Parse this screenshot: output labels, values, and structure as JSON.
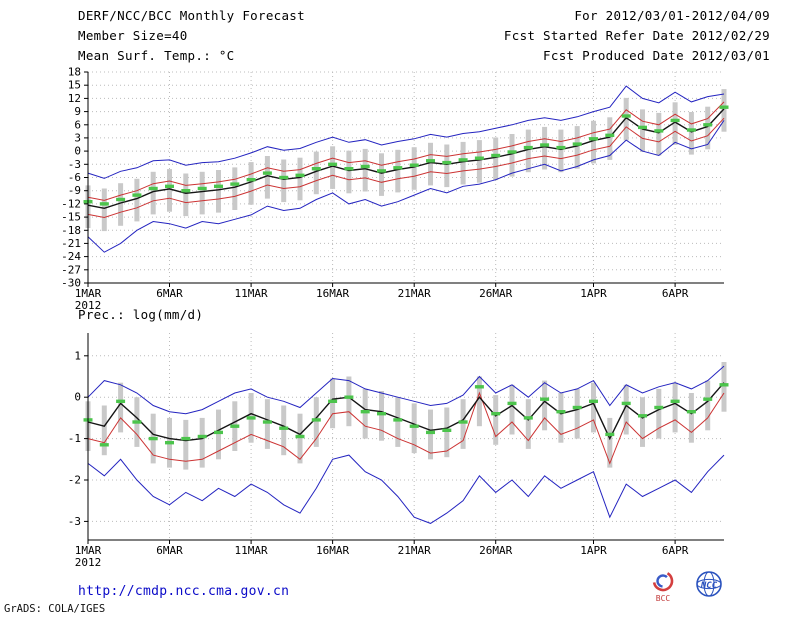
{
  "header": {
    "title": "DERF/NCC/BCC Monthly Forecast",
    "member_size": "Member Size=40",
    "variable_label": "Mean Surf. Temp.: °C",
    "for_range": "For 2012/03/01-2012/04/09",
    "fcst_started": "Fcst Started Refer Date 2012/02/29",
    "fcst_produced": "Fcst Produced Date 2012/03/01"
  },
  "footer": {
    "url": "http://cmdp.ncc.cma.gov.cn",
    "grads_credit": "GrADS: COLA/IGES",
    "bcc_label": "BCC",
    "ncc_label": "NCC"
  },
  "chart_data": [
    {
      "type": "line",
      "title": "Mean Surf. Temp.: °C",
      "n_points": 40,
      "ylim": [
        -30,
        18
      ],
      "yticks": [
        18,
        15,
        12,
        9,
        6,
        3,
        0,
        -3,
        -6,
        -9,
        -12,
        -15,
        -18,
        -21,
        -24,
        -27,
        -30
      ],
      "x_year": "2012",
      "x_ticks": [
        {
          "index": 0,
          "label": "1MAR"
        },
        {
          "index": 5,
          "label": "6MAR"
        },
        {
          "index": 10,
          "label": "11MAR"
        },
        {
          "index": 15,
          "label": "16MAR"
        },
        {
          "index": 20,
          "label": "21MAR"
        },
        {
          "index": 25,
          "label": "26MAR"
        },
        {
          "index": 31,
          "label": "1APR"
        },
        {
          "index": 36,
          "label": "6APR"
        }
      ],
      "grid": true,
      "legend": "none",
      "spread_bars": {
        "color": "#c9c9c9",
        "top": [
          -7.8,
          -8.5,
          -7.3,
          -6.3,
          -4.7,
          -4.1,
          -5.1,
          -4.7,
          -4.3,
          -3.7,
          -2.5,
          -1.1,
          -1.9,
          -1.5,
          -0.1,
          1.1,
          0.1,
          0.5,
          -0.5,
          0.3,
          0.9,
          1.9,
          1.5,
          2.1,
          2.5,
          3.1,
          3.9,
          4.9,
          5.5,
          4.9,
          5.7,
          6.9,
          7.7,
          12.1,
          9.5,
          8.7,
          11.1,
          8.9,
          10.1,
          14.1
        ],
        "bottom": [
          -17.5,
          -18.2,
          -17.0,
          -16.0,
          -14.4,
          -13.8,
          -14.8,
          -14.4,
          -14.0,
          -13.4,
          -12.2,
          -10.8,
          -11.6,
          -11.2,
          -9.8,
          -8.6,
          -9.6,
          -9.2,
          -10.2,
          -9.4,
          -8.8,
          -7.8,
          -8.2,
          -7.6,
          -7.2,
          -6.6,
          -5.8,
          -4.8,
          -4.2,
          -4.8,
          -4.0,
          -2.8,
          -2.0,
          2.4,
          -0.2,
          -1.0,
          1.4,
          -0.8,
          0.4,
          4.4
        ]
      },
      "series": [
        {
          "name": "ensemble max",
          "color": "#2424c0",
          "style": "line",
          "width": 1,
          "values": [
            -5.0,
            -6.2,
            -4.6,
            -3.8,
            -2.2,
            -2.0,
            -3.2,
            -2.6,
            -2.4,
            -1.6,
            -0.4,
            1.0,
            0.2,
            0.6,
            2.0,
            3.2,
            2.0,
            2.6,
            1.4,
            2.2,
            2.8,
            3.8,
            3.2,
            4.0,
            4.4,
            5.2,
            6.0,
            7.0,
            7.6,
            7.0,
            7.8,
            9.0,
            10.0,
            14.8,
            12.0,
            11.0,
            13.4,
            11.2,
            12.4,
            13.0
          ]
        },
        {
          "name": "ensemble min",
          "color": "#2424c0",
          "style": "line",
          "width": 1,
          "values": [
            -19.5,
            -23.0,
            -21.0,
            -18.0,
            -16.0,
            -16.5,
            -17.5,
            -16.0,
            -16.5,
            -15.5,
            -14.5,
            -12.5,
            -13.5,
            -13.0,
            -11.0,
            -9.5,
            -12.0,
            -11.0,
            -12.5,
            -11.5,
            -10.0,
            -8.5,
            -9.5,
            -8.0,
            -7.5,
            -6.5,
            -5.0,
            -4.0,
            -3.0,
            -4.5,
            -3.5,
            -2.0,
            -1.0,
            2.5,
            0.0,
            -1.0,
            2.0,
            0.5,
            1.5,
            7.0
          ]
        },
        {
          "name": "upper quartile",
          "color": "#cc3333",
          "style": "line",
          "width": 1,
          "values": [
            -10.5,
            -11.2,
            -10.0,
            -9.0,
            -7.4,
            -6.8,
            -7.8,
            -7.4,
            -7.0,
            -6.4,
            -5.2,
            -3.8,
            -4.6,
            -4.2,
            -2.8,
            -1.6,
            -2.6,
            -2.2,
            -3.2,
            -2.4,
            -1.8,
            -0.8,
            -1.2,
            -0.6,
            -0.2,
            0.4,
            1.2,
            2.2,
            2.8,
            2.2,
            3.0,
            4.2,
            5.0,
            9.4,
            6.8,
            6.0,
            8.4,
            6.2,
            7.4,
            11.2
          ]
        },
        {
          "name": "lower quartile",
          "color": "#cc3333",
          "style": "line",
          "width": 1,
          "values": [
            -14.4,
            -15.1,
            -13.9,
            -12.9,
            -11.3,
            -10.7,
            -11.7,
            -11.3,
            -10.9,
            -10.3,
            -9.1,
            -7.7,
            -8.5,
            -8.1,
            -6.7,
            -5.5,
            -6.5,
            -6.1,
            -7.1,
            -6.3,
            -5.7,
            -4.7,
            -5.1,
            -4.5,
            -4.1,
            -3.5,
            -2.7,
            -1.7,
            -1.1,
            -1.7,
            -0.9,
            0.3,
            1.1,
            5.5,
            2.9,
            2.1,
            4.5,
            2.3,
            3.5,
            7.5
          ]
        },
        {
          "name": "ensemble mean",
          "color": "#151515",
          "style": "line",
          "width": 1.4,
          "values": [
            -12.3,
            -13.0,
            -11.8,
            -10.8,
            -9.2,
            -8.6,
            -9.6,
            -9.2,
            -8.8,
            -8.2,
            -7.0,
            -5.6,
            -6.4,
            -6.0,
            -4.6,
            -3.4,
            -4.4,
            -4.0,
            -5.0,
            -4.2,
            -3.6,
            -2.6,
            -3.0,
            -2.4,
            -2.0,
            -1.4,
            -0.6,
            0.4,
            1.0,
            0.4,
            1.2,
            2.4,
            3.2,
            7.6,
            5.0,
            4.2,
            6.6,
            4.4,
            5.6,
            9.6
          ]
        },
        {
          "name": "climatology",
          "color": "#4cc44c",
          "style": "dashes",
          "width": 3.4,
          "values": [
            -11.5,
            -12.0,
            -11.0,
            -10.0,
            -8.5,
            -8.0,
            -9.0,
            -8.5,
            -8.0,
            -7.5,
            -6.5,
            -5.0,
            -6.0,
            -5.5,
            -4.0,
            -3.0,
            -4.0,
            -3.5,
            -4.5,
            -3.8,
            -3.2,
            -2.2,
            -2.6,
            -2.0,
            -1.6,
            -1.0,
            -0.2,
            0.8,
            1.4,
            0.8,
            1.6,
            2.8,
            3.6,
            8.0,
            5.4,
            4.6,
            7.0,
            4.8,
            6.0,
            10.0
          ]
        }
      ]
    },
    {
      "type": "line",
      "title": "Prec.: log(mm/d)",
      "n_points": 40,
      "ylim": [
        -3.45,
        1.55
      ],
      "yticks": [
        1,
        0,
        -1,
        -2,
        -3
      ],
      "x_year": "2012",
      "x_ticks": [
        {
          "index": 0,
          "label": "1MAR"
        },
        {
          "index": 5,
          "label": "6MAR"
        },
        {
          "index": 10,
          "label": "11MAR"
        },
        {
          "index": 15,
          "label": "16MAR"
        },
        {
          "index": 20,
          "label": "21MAR"
        },
        {
          "index": 25,
          "label": "26MAR"
        },
        {
          "index": 31,
          "label": "1APR"
        },
        {
          "index": 36,
          "label": "6APR"
        }
      ],
      "grid": true,
      "legend": "none",
      "spread_bars": {
        "color": "#c9c9c9",
        "top": [
          -0.1,
          -0.2,
          0.35,
          0.0,
          -0.4,
          -0.5,
          -0.55,
          -0.5,
          -0.3,
          -0.1,
          0.1,
          -0.05,
          -0.2,
          -0.4,
          0.0,
          0.45,
          0.5,
          0.2,
          0.15,
          0.0,
          -0.15,
          -0.3,
          -0.25,
          -0.05,
          0.5,
          0.05,
          0.3,
          -0.05,
          0.4,
          0.1,
          0.2,
          0.35,
          -0.5,
          0.3,
          0.0,
          0.2,
          0.35,
          0.1,
          0.4,
          0.85
        ],
        "bottom": [
          -1.3,
          -1.4,
          -0.85,
          -1.2,
          -1.6,
          -1.7,
          -1.75,
          -1.7,
          -1.5,
          -1.3,
          -1.1,
          -1.25,
          -1.4,
          -1.6,
          -1.2,
          -0.75,
          -0.7,
          -1.0,
          -1.05,
          -1.2,
          -1.35,
          -1.5,
          -1.45,
          -1.25,
          -0.7,
          -1.15,
          -0.9,
          -1.25,
          -0.8,
          -1.1,
          -1.0,
          -0.85,
          -1.7,
          -0.9,
          -1.2,
          -1.0,
          -0.85,
          -1.1,
          -0.8,
          -0.35
        ]
      },
      "series": [
        {
          "name": "ensemble max",
          "color": "#2424c0",
          "style": "line",
          "width": 1,
          "values": [
            0.0,
            0.4,
            0.3,
            0.1,
            -0.2,
            -0.35,
            -0.4,
            -0.3,
            -0.1,
            0.1,
            0.2,
            0.0,
            -0.1,
            -0.25,
            0.1,
            0.45,
            0.4,
            0.2,
            0.1,
            0.0,
            -0.1,
            -0.2,
            -0.15,
            0.05,
            0.5,
            0.1,
            0.3,
            0.0,
            0.35,
            0.1,
            0.2,
            0.4,
            -0.2,
            0.3,
            0.1,
            0.25,
            0.35,
            0.2,
            0.4,
            0.75
          ]
        },
        {
          "name": "ensemble min",
          "color": "#2424c0",
          "style": "line",
          "width": 1,
          "values": [
            -1.6,
            -1.9,
            -1.5,
            -2.0,
            -2.4,
            -2.6,
            -2.3,
            -2.5,
            -2.2,
            -2.4,
            -2.1,
            -2.3,
            -2.6,
            -2.8,
            -2.2,
            -1.5,
            -1.4,
            -1.8,
            -2.0,
            -2.4,
            -2.9,
            -3.05,
            -2.8,
            -2.5,
            -1.9,
            -2.3,
            -2.0,
            -2.4,
            -1.9,
            -2.2,
            -2.0,
            -1.8,
            -2.9,
            -2.1,
            -2.4,
            -2.2,
            -2.0,
            -2.3,
            -1.8,
            -1.4
          ]
        },
        {
          "name": "lower quartile",
          "color": "#cc3333",
          "style": "line",
          "width": 1,
          "values": [
            -1.0,
            -1.1,
            -0.5,
            -0.9,
            -1.4,
            -1.5,
            -1.55,
            -1.5,
            -1.3,
            -1.1,
            -0.9,
            -1.05,
            -1.2,
            -1.5,
            -1.0,
            -0.4,
            -0.35,
            -0.7,
            -0.8,
            -1.0,
            -1.15,
            -1.35,
            -1.3,
            -1.05,
            0.1,
            -0.95,
            -0.6,
            -1.05,
            -0.5,
            -0.9,
            -0.75,
            -0.55,
            -1.6,
            -0.6,
            -1.0,
            -0.75,
            -0.55,
            -0.85,
            -0.5,
            0.1
          ]
        },
        {
          "name": "ensemble mean",
          "color": "#151515",
          "style": "line",
          "width": 1.4,
          "values": [
            -0.6,
            -0.7,
            -0.15,
            -0.5,
            -0.9,
            -1.0,
            -1.05,
            -1.0,
            -0.8,
            -0.6,
            -0.4,
            -0.55,
            -0.7,
            -0.9,
            -0.5,
            -0.05,
            0.0,
            -0.3,
            -0.35,
            -0.5,
            -0.65,
            -0.8,
            -0.75,
            -0.55,
            0.0,
            -0.45,
            -0.2,
            -0.55,
            -0.1,
            -0.4,
            -0.3,
            -0.15,
            -1.0,
            -0.2,
            -0.5,
            -0.3,
            -0.15,
            -0.4,
            -0.1,
            0.35
          ]
        },
        {
          "name": "climatology",
          "color": "#4cc44c",
          "style": "dashes",
          "width": 3.4,
          "values": [
            -0.55,
            -1.15,
            -0.1,
            -0.6,
            -1.0,
            -1.1,
            -1.0,
            -0.95,
            -0.85,
            -0.7,
            -0.5,
            -0.6,
            -0.75,
            -0.95,
            -0.55,
            -0.1,
            0.0,
            -0.35,
            -0.4,
            -0.55,
            -0.7,
            -0.85,
            -0.8,
            -0.6,
            0.25,
            -0.4,
            -0.15,
            -0.5,
            -0.05,
            -0.35,
            -0.25,
            -0.1,
            -0.9,
            -0.15,
            -0.45,
            -0.25,
            -0.1,
            -0.35,
            -0.05,
            0.3
          ]
        }
      ]
    }
  ]
}
